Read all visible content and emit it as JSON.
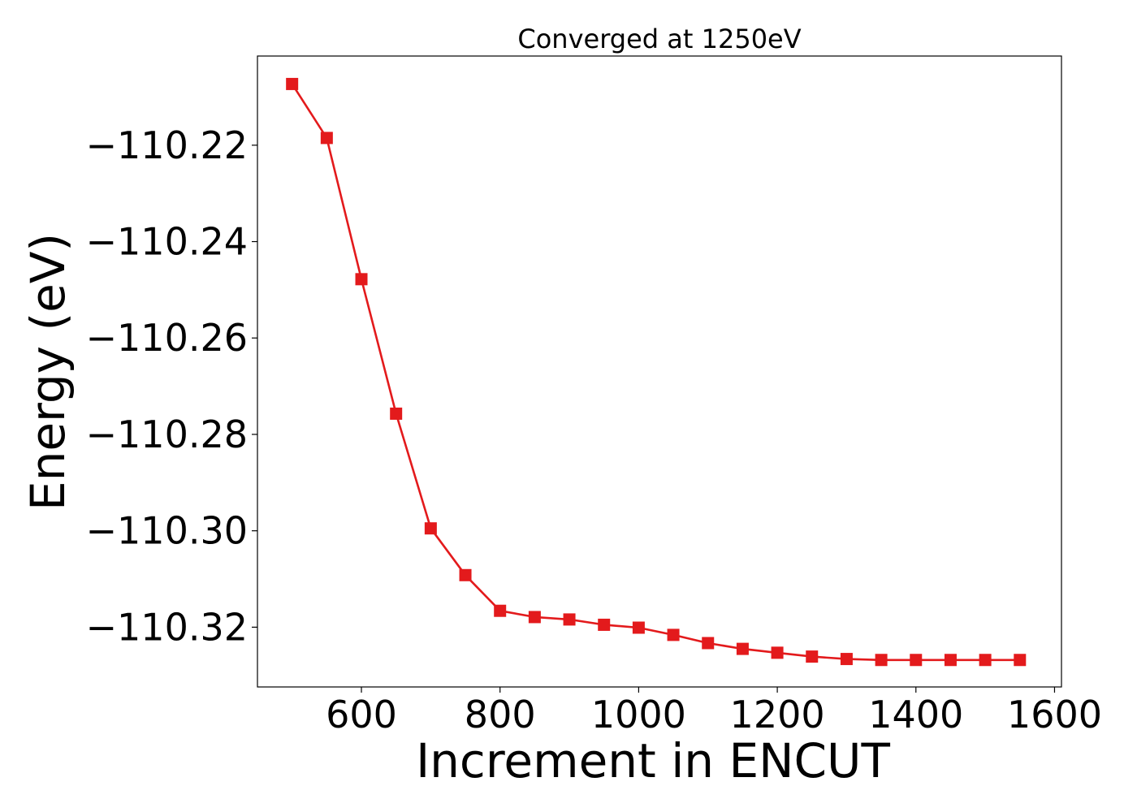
{
  "chart_data": {
    "type": "line",
    "title": "Converged at 1250eV",
    "xlabel": "Increment in ENCUT",
    "ylabel": "Energy (eV)",
    "xlim": [
      450,
      1610
    ],
    "ylim": [
      -110.3324,
      -110.2015
    ],
    "xticks": [
      600,
      800,
      1000,
      1200,
      1400,
      1600
    ],
    "xtick_labels": [
      "600",
      "800",
      "1000",
      "1200",
      "1400",
      "1600"
    ],
    "yticks": [
      -110.22,
      -110.24,
      -110.26,
      -110.28,
      -110.3,
      -110.32
    ],
    "ytick_labels": [
      "−110.22",
      "−110.24",
      "−110.26",
      "−110.28",
      "−110.30",
      "−110.32"
    ],
    "grid": false,
    "series": [
      {
        "color": "#e31a1c",
        "marker": "square",
        "x": [
          500,
          550,
          600,
          650,
          700,
          750,
          800,
          850,
          900,
          950,
          1000,
          1050,
          1100,
          1150,
          1200,
          1250,
          1300,
          1350,
          1400,
          1450,
          1500,
          1550
        ],
        "y": [
          -110.2073,
          -110.2185,
          -110.2478,
          -110.2757,
          -110.2995,
          -110.3092,
          -110.3166,
          -110.3179,
          -110.3184,
          -110.3195,
          -110.3201,
          -110.3216,
          -110.3233,
          -110.3245,
          -110.3253,
          -110.3261,
          -110.3266,
          -110.3268,
          -110.3268,
          -110.3268,
          -110.3268,
          -110.3268
        ]
      }
    ]
  }
}
